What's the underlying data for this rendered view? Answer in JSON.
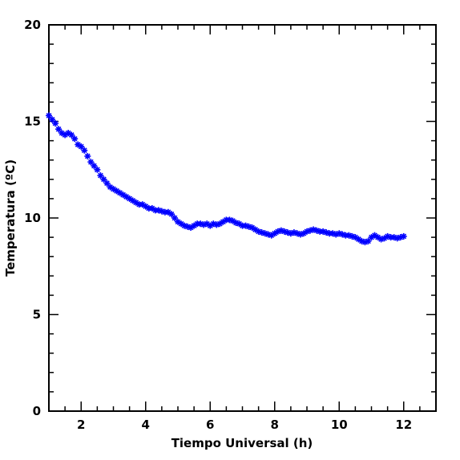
{
  "chart_data": {
    "type": "scatter",
    "xlabel": "Tiempo Universal (h)",
    "ylabel": "Temperatura (ºC)",
    "xlim": [
      1,
      13
    ],
    "ylim": [
      0,
      20
    ],
    "x_ticks": [
      2,
      4,
      6,
      8,
      10,
      12
    ],
    "x_tick_labels": [
      "2",
      "4",
      "6",
      "8",
      "10",
      "12"
    ],
    "y_ticks": [
      0,
      5,
      10,
      15,
      20
    ],
    "y_tick_labels": [
      "0",
      "5",
      "10",
      "15",
      "20"
    ],
    "marker": "asterisk",
    "color": "#0000ff",
    "grid": false,
    "series": [
      {
        "x": [
          1.0,
          1.1,
          1.2,
          1.3,
          1.4,
          1.5,
          1.6,
          1.7,
          1.8,
          1.9,
          2.0,
          2.1,
          2.2,
          2.3,
          2.4,
          2.5,
          2.6,
          2.7,
          2.8,
          2.9,
          3.0,
          3.1,
          3.2,
          3.3,
          3.4,
          3.5,
          3.6,
          3.7,
          3.8,
          3.9,
          4.0,
          4.1,
          4.2,
          4.3,
          4.4,
          4.5,
          4.6,
          4.7,
          4.8,
          4.9,
          5.0,
          5.1,
          5.2,
          5.3,
          5.4,
          5.5,
          5.6,
          5.7,
          5.8,
          5.9,
          6.0,
          6.1,
          6.2,
          6.3,
          6.4,
          6.5,
          6.6,
          6.7,
          6.8,
          6.9,
          7.0,
          7.1,
          7.2,
          7.3,
          7.4,
          7.5,
          7.6,
          7.7,
          7.8,
          7.9,
          8.0,
          8.1,
          8.2,
          8.3,
          8.4,
          8.5,
          8.6,
          8.7,
          8.8,
          8.9,
          9.0,
          9.1,
          9.2,
          9.3,
          9.4,
          9.5,
          9.6,
          9.7,
          9.8,
          9.9,
          10.0,
          10.1,
          10.2,
          10.3,
          10.4,
          10.5,
          10.6,
          10.7,
          10.8,
          10.9,
          11.0,
          11.1,
          11.2,
          11.3,
          11.4,
          11.5,
          11.6,
          11.7,
          11.8,
          11.9,
          12.0
        ],
        "y": [
          15.3,
          15.1,
          14.9,
          14.6,
          14.4,
          14.3,
          14.4,
          14.3,
          14.1,
          13.8,
          13.7,
          13.5,
          13.2,
          12.9,
          12.7,
          12.5,
          12.2,
          12.0,
          11.8,
          11.6,
          11.5,
          11.4,
          11.3,
          11.2,
          11.1,
          11.0,
          10.9,
          10.8,
          10.7,
          10.7,
          10.6,
          10.5,
          10.5,
          10.4,
          10.4,
          10.35,
          10.3,
          10.3,
          10.2,
          10.0,
          9.8,
          9.7,
          9.6,
          9.55,
          9.5,
          9.6,
          9.7,
          9.7,
          9.65,
          9.7,
          9.6,
          9.7,
          9.65,
          9.7,
          9.8,
          9.9,
          9.9,
          9.85,
          9.75,
          9.7,
          9.6,
          9.6,
          9.55,
          9.5,
          9.4,
          9.3,
          9.25,
          9.2,
          9.15,
          9.1,
          9.2,
          9.3,
          9.35,
          9.3,
          9.25,
          9.2,
          9.25,
          9.2,
          9.15,
          9.2,
          9.3,
          9.35,
          9.4,
          9.35,
          9.3,
          9.3,
          9.25,
          9.2,
          9.2,
          9.15,
          9.2,
          9.15,
          9.1,
          9.1,
          9.05,
          9.0,
          8.9,
          8.8,
          8.75,
          8.8,
          9.0,
          9.1,
          9.0,
          8.9,
          8.95,
          9.05,
          9.0,
          9.0,
          8.95,
          9.0,
          9.05
        ]
      }
    ]
  }
}
